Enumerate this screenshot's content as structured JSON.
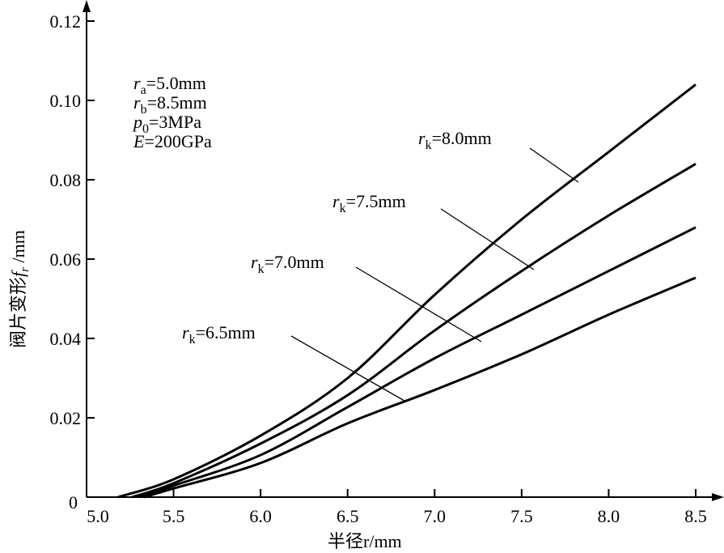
{
  "chart_data": {
    "type": "line",
    "title": "",
    "xlabel": "半径r/mm",
    "ylabel": "阀片变形f_r/mm",
    "xlim": [
      5.0,
      8.5
    ],
    "ylim": [
      0,
      0.12
    ],
    "x_ticks": [
      "5.0",
      "5.5",
      "6.0",
      "6.5",
      "7.0",
      "7.5",
      "8.0",
      "8.5"
    ],
    "x_tick_values": [
      5.0,
      5.5,
      6.0,
      6.5,
      7.0,
      7.5,
      8.0,
      8.5
    ],
    "y_ticks": [
      "0",
      "0.02",
      "0.04",
      "0.06",
      "0.08",
      "0.10",
      "0.12"
    ],
    "y_tick_values": [
      0,
      0.02,
      0.04,
      0.06,
      0.08,
      0.1,
      0.12
    ],
    "grid": false,
    "parameters": [
      {
        "sym": "r",
        "sub": "a",
        "val": "=5.0mm"
      },
      {
        "sym": "r",
        "sub": "b",
        "val": "=8.5mm"
      },
      {
        "sym": "p",
        "sub": "0",
        "val": "=3MPa"
      },
      {
        "sym": "E",
        "sub": "",
        "val": "=200GPa"
      }
    ],
    "series": [
      {
        "name": "r_k=8.0mm",
        "label_sym": "r",
        "label_sub": "k",
        "label_val": "=8.0mm",
        "x": [
          5.18,
          5.5,
          6.0,
          6.5,
          7.0,
          7.5,
          8.0,
          8.5
        ],
        "y": [
          0,
          0.0045,
          0.0155,
          0.03,
          0.051,
          0.07,
          0.087,
          0.104
        ]
      },
      {
        "name": "r_k=7.5mm",
        "label_sym": "r",
        "label_sub": "k",
        "label_val": "=7.5mm",
        "x": [
          5.26,
          5.5,
          6.0,
          6.5,
          7.0,
          7.5,
          8.0,
          8.5
        ],
        "y": [
          0,
          0.0035,
          0.0135,
          0.0257,
          0.042,
          0.057,
          0.071,
          0.084
        ]
      },
      {
        "name": "r_k=7.0mm",
        "label_sym": "r",
        "label_sub": "k",
        "label_val": "=7.0mm",
        "x": [
          5.3,
          5.5,
          6.0,
          6.5,
          7.0,
          7.5,
          8.0,
          8.5
        ],
        "y": [
          0,
          0.0029,
          0.0106,
          0.0227,
          0.035,
          0.046,
          0.057,
          0.068
        ]
      },
      {
        "name": "r_k=6.5mm",
        "label_sym": "r",
        "label_sub": "k",
        "label_val": "=6.5mm",
        "x": [
          5.33,
          5.5,
          6.0,
          6.5,
          7.0,
          7.5,
          8.0,
          8.5
        ],
        "y": [
          0,
          0.0022,
          0.0086,
          0.0186,
          0.027,
          0.036,
          0.046,
          0.0553
        ]
      }
    ]
  }
}
